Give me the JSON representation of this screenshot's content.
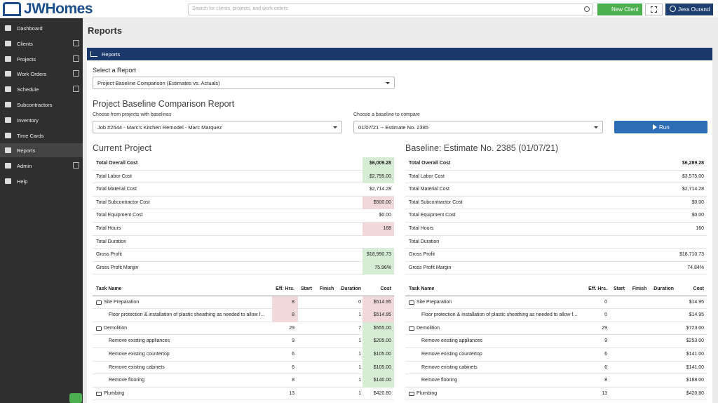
{
  "header": {
    "logo": "JWHomes",
    "search_placeholder": "Search for clients, projects, and work orders",
    "new_client": "New Client",
    "user": "Jess Ourand"
  },
  "sidebar": {
    "items": [
      {
        "label": "Dashboard"
      },
      {
        "label": "Clients",
        "expandable": true
      },
      {
        "label": "Projects",
        "expandable": true
      },
      {
        "label": "Work Orders",
        "expandable": true
      },
      {
        "label": "Schedule",
        "expandable": true
      },
      {
        "label": "Subcontractors"
      },
      {
        "label": "Inventory"
      },
      {
        "label": "Time Cards"
      },
      {
        "label": "Reports",
        "active": true
      },
      {
        "label": "Admin",
        "expandable": true
      },
      {
        "label": "Help"
      }
    ]
  },
  "page": {
    "title": "Reports"
  },
  "panel": {
    "title": "Reports"
  },
  "form": {
    "select_label": "Select a Report",
    "select_value": "Project Baseline Comparison (Estimates vs. Actuals)",
    "report_title": "Project Baseline Comparison Report",
    "project_label": "Choose from projects with baselines",
    "project_value": "Job #2544 - Marc's Kitchen Remodel - Marc Marquez",
    "baseline_label": "Choose a baseline to compare",
    "baseline_value": "01/07/21 -- Estimate No. 2385",
    "run_button": "Run"
  },
  "current": {
    "title": "Current Project",
    "summary": [
      {
        "label": "Total Overall Cost",
        "value": "$6,009.28",
        "status": "good",
        "bold": true
      },
      {
        "label": "Total Labor Cost",
        "value": "$2,795.00",
        "status": "good"
      },
      {
        "label": "Total Material Cost",
        "value": "$2,714.28"
      },
      {
        "label": "Total Subcontractor Cost",
        "value": "$500.00",
        "status": "bad"
      },
      {
        "label": "Total Equipment Cost",
        "value": "$0.00"
      },
      {
        "label": "Total Hours",
        "value": "168",
        "status": "bad"
      },
      {
        "label": "Total Duration"
      },
      {
        "label": "Gross Profit",
        "value": "$18,990.73",
        "status": "good"
      },
      {
        "label": "Gross Profit Margin",
        "value": "75.96%",
        "status": "good"
      }
    ],
    "tasks": {
      "columns": [
        "Task Name",
        "Eff. Hrs.",
        "Start",
        "Finish",
        "Duration",
        "Cost"
      ],
      "rows": [
        {
          "name": "Site Preparation",
          "level": 0,
          "eff": "8",
          "duration": "0",
          "cost": "$514.95",
          "eff_status": "bad",
          "cost_status": "bad"
        },
        {
          "name": "Floor protection & installation of plastic sheathing as needed to allow f...",
          "level": 1,
          "eff": "8",
          "duration": "1",
          "cost": "$514.95",
          "eff_status": "bad",
          "cost_status": "bad"
        },
        {
          "name": "Demolition",
          "level": 0,
          "eff": "29",
          "duration": "7",
          "cost": "$555.00",
          "cost_status": "good"
        },
        {
          "name": "Remove existing appliances",
          "level": 1,
          "eff": "9",
          "duration": "1",
          "cost": "$205.00",
          "cost_status": "good"
        },
        {
          "name": "Remove existing countertop",
          "level": 1,
          "eff": "6",
          "duration": "1",
          "cost": "$105.00",
          "cost_status": "good"
        },
        {
          "name": "Remove existing cabinets",
          "level": 1,
          "eff": "6",
          "duration": "1",
          "cost": "$105.00",
          "cost_status": "good"
        },
        {
          "name": "Remove flooring",
          "level": 1,
          "eff": "8",
          "duration": "1",
          "cost": "$140.00",
          "cost_status": "good"
        },
        {
          "name": "Plumbing",
          "level": 0,
          "eff": "13",
          "duration": "1",
          "cost": "$420.80"
        }
      ]
    }
  },
  "baseline": {
    "title": "Baseline: Estimate No. 2385 (01/07/21)",
    "summary": [
      {
        "label": "Total Overall Cost",
        "value": "$6,289.28",
        "bold": true
      },
      {
        "label": "Total Labor Cost",
        "value": "$3,575.00"
      },
      {
        "label": "Total Material Cost",
        "value": "$2,714.28"
      },
      {
        "label": "Total Subcontractor Cost",
        "value": "$0.00"
      },
      {
        "label": "Total Equipment Cost",
        "value": "$0.00"
      },
      {
        "label": "Total Hours",
        "value": "160"
      },
      {
        "label": "Total Duration"
      },
      {
        "label": "Gross Profit",
        "value": "$18,710.73"
      },
      {
        "label": "Gross Profit Margin",
        "value": "74.84%"
      }
    ],
    "tasks": {
      "columns": [
        "Task Name",
        "Eff. Hrs.",
        "Start",
        "Finish",
        "Duration",
        "Cost"
      ],
      "rows": [
        {
          "name": "Site Preparation",
          "level": 0,
          "eff": "0",
          "cost": "$14.95"
        },
        {
          "name": "Floor protection & installation of plastic sheathing as needed to allow f...",
          "level": 1,
          "eff": "0",
          "cost": "$14.95"
        },
        {
          "name": "Demolition",
          "level": 0,
          "eff": "29",
          "cost": "$723.00"
        },
        {
          "name": "Remove existing appliances",
          "level": 1,
          "eff": "9",
          "cost": "$253.00"
        },
        {
          "name": "Remove existing countertop",
          "level": 1,
          "eff": "6",
          "cost": "$141.00"
        },
        {
          "name": "Remove existing cabinets",
          "level": 1,
          "eff": "6",
          "cost": "$141.00"
        },
        {
          "name": "Remove flooring",
          "level": 1,
          "eff": "8",
          "cost": "$188.00"
        },
        {
          "name": "Plumbing",
          "level": 0,
          "eff": "13",
          "cost": "$420.80"
        }
      ]
    }
  }
}
